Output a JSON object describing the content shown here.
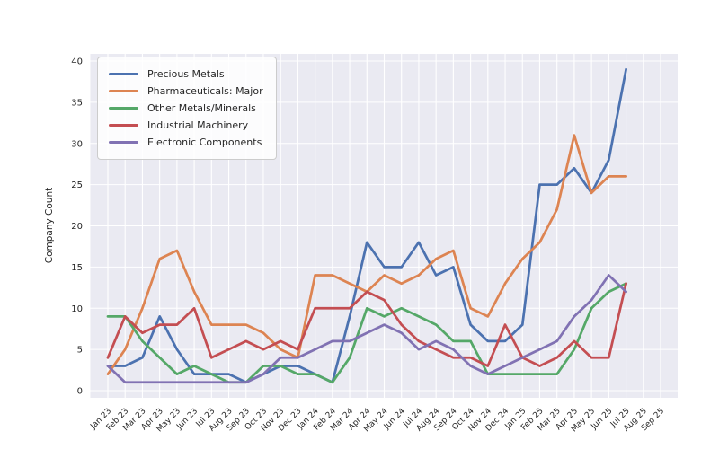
{
  "figure": {
    "background_color": "#ffffff",
    "plot_background_color": "#eaeaf2",
    "grid_color": "#ffffff"
  },
  "chart_data": {
    "type": "line",
    "title": "",
    "xlabel": "",
    "ylabel": "Company Count",
    "ylim": [
      0,
      40
    ],
    "yticks": [
      0,
      5,
      10,
      15,
      20,
      25,
      30,
      35,
      40
    ],
    "grid": true,
    "legend_position": "upper left",
    "x": [
      "Jan 23",
      "Feb 23",
      "Mar 23",
      "Apr 23",
      "May 23",
      "Jun 23",
      "Jul 23",
      "Aug 23",
      "Sep 23",
      "Oct 23",
      "Nov 23",
      "Dec 23",
      "Jan 24",
      "Feb 24",
      "Mar 24",
      "Apr 24",
      "May 24",
      "Jun 24",
      "Jul 24",
      "Aug 24",
      "Sep 24",
      "Oct 24",
      "Nov 24",
      "Dec 24",
      "Jan 25",
      "Feb 25",
      "Mar 25",
      "Apr 25",
      "May 25",
      "Jun 25",
      "Jul 25",
      "Aug 25",
      "Sep 25"
    ],
    "series": [
      {
        "name": "Precious Metals",
        "color": "#4c72b0",
        "values": [
          3,
          3,
          4,
          9,
          5,
          2,
          2,
          2,
          1,
          2,
          3,
          3,
          2,
          1,
          9,
          18,
          15,
          15,
          18,
          14,
          15,
          8,
          6,
          6,
          8,
          25,
          25,
          27,
          24,
          28,
          39,
          null,
          null
        ]
      },
      {
        "name": "Pharmaceuticals: Major",
        "color": "#dd8452",
        "values": [
          2,
          5,
          10,
          16,
          17,
          12,
          8,
          8,
          8,
          7,
          5,
          4,
          14,
          14,
          13,
          12,
          14,
          13,
          14,
          16,
          17,
          10,
          9,
          13,
          16,
          18,
          22,
          31,
          24,
          26,
          26,
          null,
          null
        ]
      },
      {
        "name": "Other Metals/Minerals",
        "color": "#55a868",
        "values": [
          9,
          9,
          6,
          4,
          2,
          3,
          2,
          1,
          1,
          3,
          3,
          2,
          2,
          1,
          4,
          10,
          9,
          10,
          9,
          8,
          6,
          6,
          2,
          2,
          2,
          2,
          2,
          5,
          10,
          12,
          13,
          null,
          null
        ]
      },
      {
        "name": "Industrial Machinery",
        "color": "#c44e52",
        "values": [
          4,
          9,
          7,
          8,
          8,
          10,
          4,
          5,
          6,
          5,
          6,
          5,
          10,
          10,
          10,
          12,
          11,
          8,
          6,
          5,
          4,
          4,
          3,
          8,
          4,
          3,
          4,
          6,
          4,
          4,
          13,
          null,
          null
        ]
      },
      {
        "name": "Electronic Components",
        "color": "#8172b3",
        "values": [
          3,
          1,
          1,
          1,
          1,
          1,
          1,
          1,
          1,
          2,
          4,
          4,
          5,
          6,
          6,
          7,
          8,
          7,
          5,
          6,
          5,
          3,
          2,
          3,
          4,
          5,
          6,
          9,
          11,
          14,
          12,
          null,
          null
        ]
      }
    ]
  }
}
